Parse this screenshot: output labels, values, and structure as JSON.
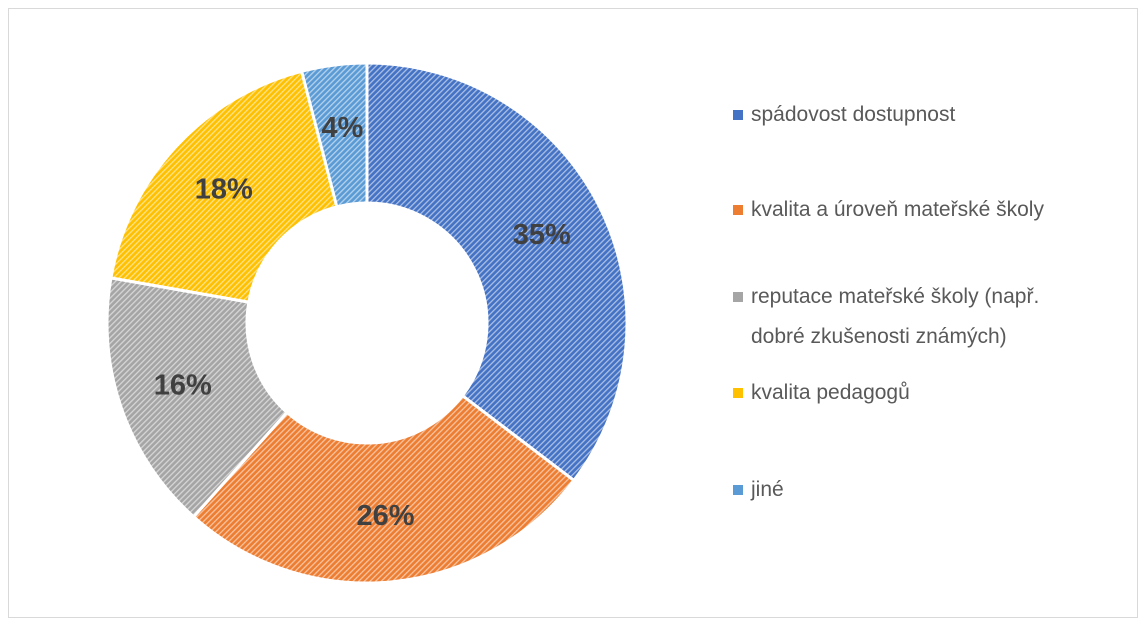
{
  "chart_data": {
    "type": "donut",
    "categories": [
      "spádovost dostupnost",
      "kvalita a úroveň mateřské školy",
      "reputace mateřské školy (např. dobré zkušenosti známých)",
      "kvalita pedagogů",
      "jiné"
    ],
    "values": [
      35,
      26,
      16,
      18,
      4
    ],
    "value_labels": [
      "35%",
      "26%",
      "16%",
      "18%",
      "4%"
    ],
    "colors": [
      "#4472c4",
      "#ed7d31",
      "#a5a5a5",
      "#ffc000",
      "#5b9bd5"
    ],
    "legend": "right"
  }
}
